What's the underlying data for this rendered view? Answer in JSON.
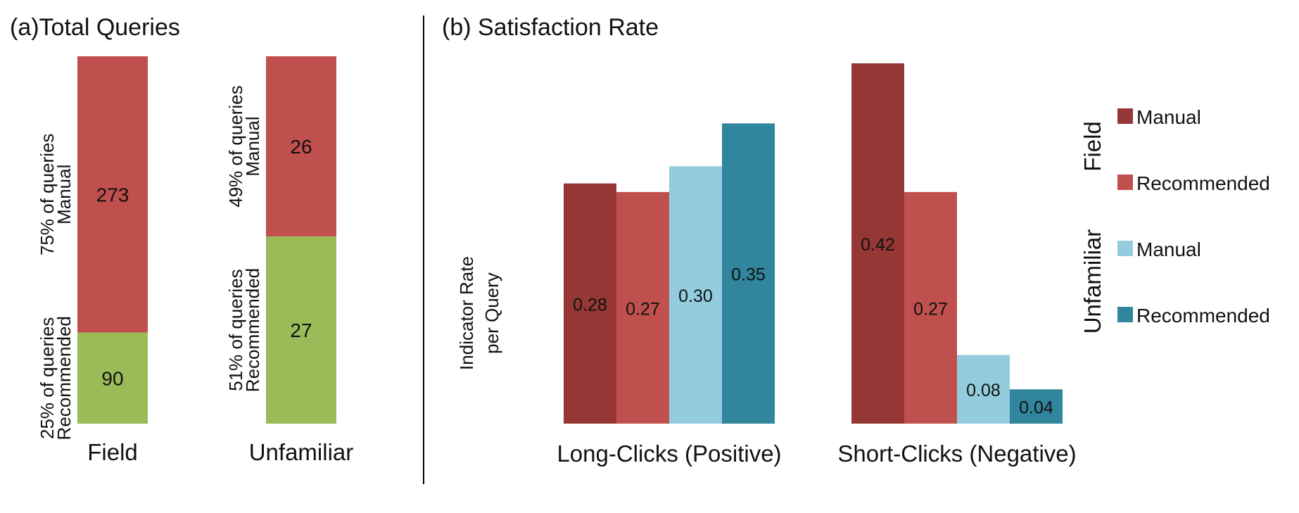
{
  "colors": {
    "field_manual": "#953735",
    "field_recommended": "#C0504D",
    "stack_manual": "#C0504D",
    "stack_recommended": "#9BBB59",
    "unfamiliar_manual": "#93CDDD",
    "unfamiliar_recommended": "#31859C",
    "divider": "#000000"
  },
  "chart_data": [
    {
      "type": "bar",
      "stacked": true,
      "title": "(a)Total Queries",
      "categories": [
        "Field",
        "Unfamiliar"
      ],
      "series": [
        {
          "key": "recommended",
          "values": [
            90,
            27
          ],
          "labels": [
            [
              "25% of queries",
              "Recommended"
            ],
            [
              "51% of queries",
              "Recommended"
            ]
          ]
        },
        {
          "key": "manual",
          "values": [
            273,
            26
          ],
          "labels": [
            [
              "75% of queries",
              "Manual"
            ],
            [
              "49% of queries",
              "Manual"
            ]
          ]
        }
      ],
      "normalized": true
    },
    {
      "type": "bar",
      "title": "(b) Satisfaction Rate",
      "ylabel": [
        "Indicator Rate",
        "per Query"
      ],
      "categories": [
        "Long-Clicks (Positive)",
        "Short-Clicks (Negative)"
      ],
      "ylim": [
        0,
        0.43
      ],
      "series": [
        {
          "name": "Manual",
          "group": "Field",
          "color_key": "field_manual",
          "values": [
            0.28,
            0.42
          ]
        },
        {
          "name": "Recommended",
          "group": "Field",
          "color_key": "field_recommended",
          "values": [
            0.27,
            0.27
          ]
        },
        {
          "name": "Manual",
          "group": "Unfamiliar",
          "color_key": "unfamiliar_manual",
          "values": [
            0.3,
            0.08
          ]
        },
        {
          "name": "Recommended",
          "group": "Unfamiliar",
          "color_key": "unfamiliar_recommended",
          "values": [
            0.35,
            0.04
          ]
        }
      ],
      "legend": {
        "placement": "right",
        "groups": [
          "Field",
          "Unfamiliar"
        ]
      },
      "grid": false
    }
  ]
}
